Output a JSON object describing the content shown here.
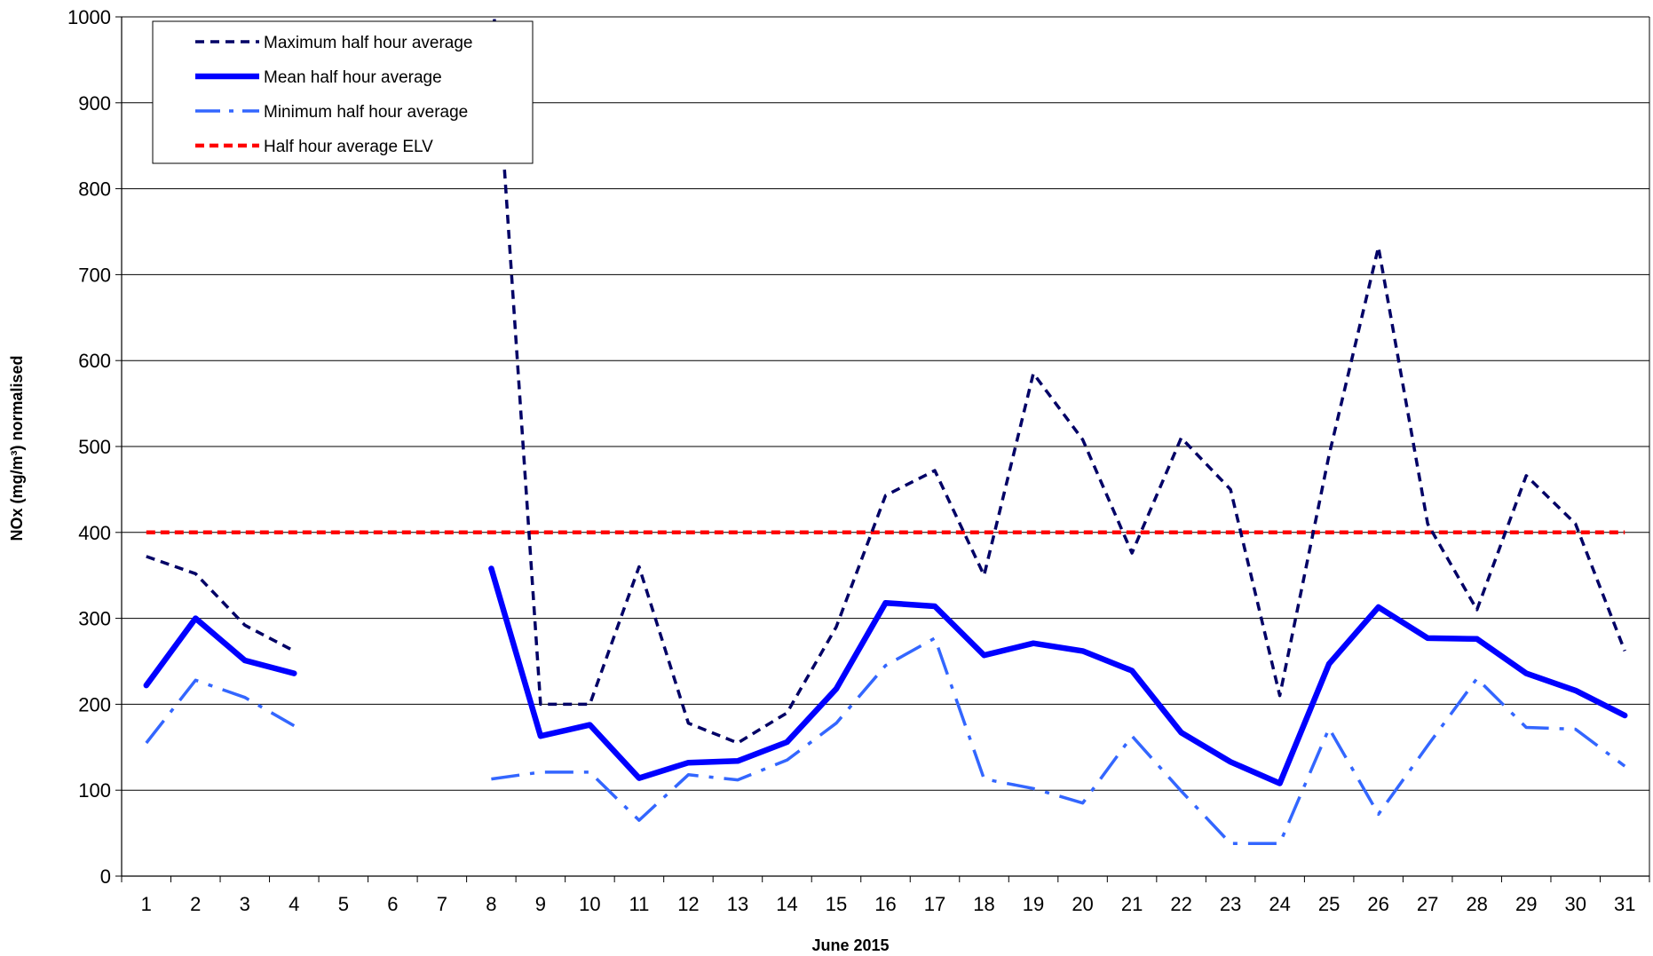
{
  "chart_data": {
    "type": "line",
    "title": "",
    "xlabel": "June 2015",
    "ylabel": "NOx (mg/m³) normalised",
    "ylim": [
      0,
      1000
    ],
    "yticks": [
      0,
      100,
      200,
      300,
      400,
      500,
      600,
      700,
      800,
      900,
      1000
    ],
    "categories": [
      "1",
      "2",
      "3",
      "4",
      "5",
      "6",
      "7",
      "8",
      "9",
      "10",
      "11",
      "12",
      "13",
      "14",
      "15",
      "16",
      "17",
      "18",
      "19",
      "20",
      "21",
      "22",
      "23",
      "24",
      "25",
      "26",
      "27",
      "28",
      "29",
      "30",
      "31"
    ],
    "grid": "horizontal",
    "legend_position": "top-left",
    "series": [
      {
        "name": "Maximum half hour average",
        "style": "dashed",
        "color": "#000066",
        "values": [
          372,
          352,
          292,
          262,
          null,
          null,
          null,
          1050,
          200,
          200,
          360,
          178,
          155,
          190,
          290,
          443,
          472,
          350,
          585,
          508,
          376,
          510,
          450,
          210,
          490,
          732,
          410,
          310,
          466,
          410,
          262
        ]
      },
      {
        "name": "Mean half hour average",
        "style": "solid",
        "color": "#0000ff",
        "values": [
          222,
          300,
          251,
          236,
          null,
          null,
          null,
          358,
          163,
          176,
          114,
          132,
          134,
          156,
          218,
          318,
          314,
          257,
          271,
          262,
          239,
          167,
          133,
          108,
          247,
          313,
          277,
          276,
          236,
          216,
          187
        ]
      },
      {
        "name": "Minimum half hour average",
        "style": "dashdot",
        "color": "#3366ff",
        "values": [
          155,
          228,
          208,
          175,
          null,
          null,
          null,
          113,
          121,
          121,
          65,
          118,
          112,
          135,
          178,
          245,
          277,
          113,
          102,
          85,
          163,
          99,
          38,
          38,
          172,
          72,
          152,
          230,
          173,
          171,
          128
        ]
      },
      {
        "name": "Half hour average ELV",
        "style": "dashed",
        "color": "#ff0000",
        "values": [
          400,
          400,
          400,
          400,
          400,
          400,
          400,
          400,
          400,
          400,
          400,
          400,
          400,
          400,
          400,
          400,
          400,
          400,
          400,
          400,
          400,
          400,
          400,
          400,
          400,
          400,
          400,
          400,
          400,
          400,
          400
        ]
      }
    ]
  }
}
